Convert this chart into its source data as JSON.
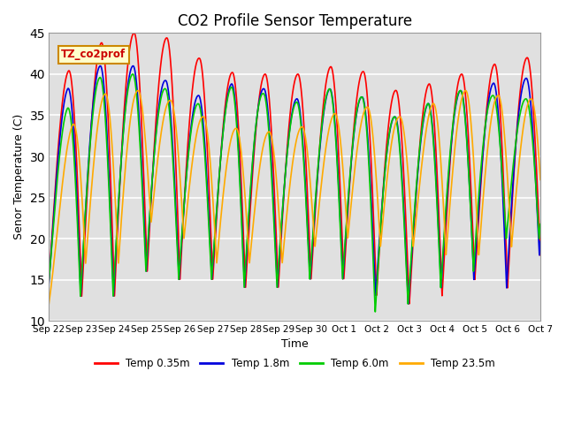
{
  "title": "CO2 Profile Sensor Temperature",
  "ylabel": "Senor Temperature (C)",
  "xlabel": "Time",
  "ylim": [
    10,
    45
  ],
  "annotation_text": "TZ_co2prof",
  "annotation_bg": "#ffffcc",
  "annotation_border": "#cc8800",
  "series_colors": [
    "#ff0000",
    "#0000dd",
    "#00cc00",
    "#ffaa00"
  ],
  "series_labels": [
    "Temp 0.35m",
    "Temp 1.8m",
    "Temp 6.0m",
    "Temp 23.5m"
  ],
  "series_lw": [
    1.2,
    1.2,
    1.2,
    1.2
  ],
  "plot_bg": "#e0e0e0",
  "tick_labels": [
    "Sep 22",
    "Sep 23",
    "Sep 24",
    "Sep 25",
    "Sep 26",
    "Sep 27",
    "Sep 28",
    "Sep 29",
    "Sep 30",
    "Oct 1",
    "Oct 2",
    "Oct 3",
    "Oct 4",
    "Oct 5",
    "Oct 6",
    "Oct 7"
  ],
  "yticks": [
    10,
    15,
    20,
    25,
    30,
    35,
    40,
    45
  ],
  "n_days": 15,
  "points_per_day": 300
}
